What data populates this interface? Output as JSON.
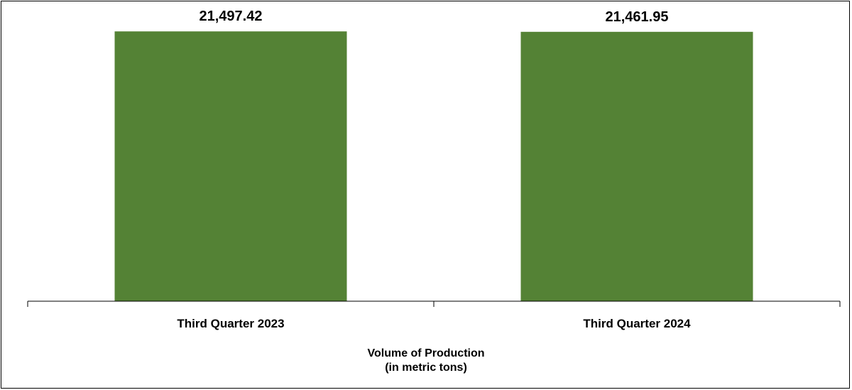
{
  "chart_data": {
    "type": "bar",
    "categories": [
      "Third Quarter 2023",
      "Third Quarter 2024"
    ],
    "values": [
      21497.42,
      21461.95
    ],
    "data_labels": [
      "21,497.42",
      "21,461.95"
    ],
    "title": "",
    "xlabel_line1": "Volume of Production",
    "xlabel_line2": "(in metric tons)",
    "ylabel": "",
    "ylim": [
      0,
      24000
    ],
    "grid": false,
    "legend": "none",
    "bar_color": "#548235"
  }
}
